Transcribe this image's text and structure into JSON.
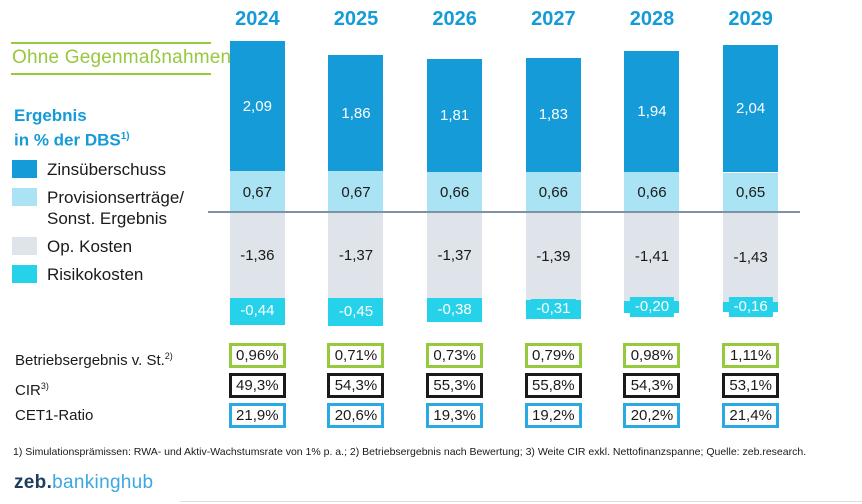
{
  "header": {
    "scenario_label": "Ohne Gegenmaßnahmen",
    "title_line1": "Ergebnis",
    "title_line2": "in % der DBS",
    "title_sup": "1)"
  },
  "colors": {
    "zinsueberschuss_blue": "#149BD8",
    "provision_lightblue": "#A9E3F4",
    "opkosten_gray": "#DEE4E9",
    "risikokosten_cyan": "#26D2E9",
    "year_label_blue": "#149BD8",
    "scenario_green": "#96C93D",
    "metric_border_green": "#96C93D",
    "metric_border_black": "#1A1A1A",
    "metric_border_blue": "#2BA9E2",
    "zero_line_gray": "#7E93A8",
    "logo_navy": "#1C3D5E",
    "logo_lightblue": "#3BA8E0"
  },
  "legend": [
    {
      "name": "zinsueberschuss",
      "color": "#149BD8",
      "lines": [
        "Zinsüberschuss"
      ]
    },
    {
      "name": "provisionsertraege",
      "color": "#A9E3F4",
      "lines": [
        "Provisionserträge/",
        "Sonst. Ergebnis"
      ]
    },
    {
      "name": "op-kosten",
      "color": "#DEE4E9",
      "lines": [
        "Op. Kosten"
      ]
    },
    {
      "name": "risikokosten",
      "color": "#26D2E9",
      "lines": [
        "Risikokosten"
      ]
    }
  ],
  "chart_data": {
    "type": "bar",
    "stacked": true,
    "title": "Ergebnis in % der DBS",
    "categories": [
      "2024",
      "2025",
      "2026",
      "2027",
      "2028",
      "2029"
    ],
    "baseline": 0,
    "legend_position": "left",
    "grid": false,
    "series": [
      {
        "name": "Zinsüberschuss",
        "color": "#149BD8",
        "text_color": "#ffffff",
        "values": [
          2.09,
          1.86,
          1.81,
          1.83,
          1.94,
          2.04
        ],
        "labels": [
          "2,09",
          "1,86",
          "1,81",
          "1,83",
          "1,94",
          "2,04"
        ]
      },
      {
        "name": "Provisionserträge/Sonst. Ergebnis",
        "color": "#A9E3F4",
        "text_color": "#1A1A1A",
        "values": [
          0.67,
          0.67,
          0.66,
          0.66,
          0.66,
          0.65
        ],
        "labels": [
          "0,67",
          "0,67",
          "0,66",
          "0,66",
          "0,66",
          "0,65"
        ]
      },
      {
        "name": "Op. Kosten",
        "color": "#DEE4E9",
        "text_color": "#1A1A1A",
        "values": [
          -1.36,
          -1.37,
          -1.37,
          -1.39,
          -1.41,
          -1.43
        ],
        "labels": [
          "-1,36",
          "-1,37",
          "-1,37",
          "-1,39",
          "-1,41",
          "-1,43"
        ]
      },
      {
        "name": "Risikokosten",
        "color": "#26D2E9",
        "text_color": "#ffffff",
        "badge": true,
        "values": [
          -0.44,
          -0.45,
          -0.38,
          -0.31,
          -0.2,
          -0.16
        ],
        "labels": [
          "-0,44",
          "-0,45",
          "-0,38",
          "-0,31",
          "-0,20",
          "-0,16"
        ]
      }
    ],
    "metric_rows": [
      {
        "name": "betriebsergebnis",
        "label": "Betriebsergebnis v. St.",
        "superscript": "2)",
        "border_color": "#96C93D",
        "values": [
          "0,96%",
          "0,71%",
          "0,73%",
          "0,79%",
          "0,98%",
          "1,11%"
        ]
      },
      {
        "name": "cir",
        "label": "CIR",
        "superscript": "3)",
        "border_color": "#1A1A1A",
        "values": [
          "49,3%",
          "54,3%",
          "55,3%",
          "55,8%",
          "54,3%",
          "53,1%"
        ]
      },
      {
        "name": "cet1-ratio",
        "label": "CET1-Ratio",
        "superscript": "",
        "border_color": "#2BA9E2",
        "values": [
          "21,9%",
          "20,6%",
          "19,3%",
          "19,2%",
          "20,2%",
          "21,4%"
        ]
      }
    ]
  },
  "footnote": "1) Simulationsprämissen: RWA- und Aktiv-Wachstumsrate von 1% p. a.; 2) Betriebsergebnis nach Bewertung; 3) Weite CIR exkl. Nettofinanzspanne; Quelle: zeb.research.",
  "logo": {
    "prefix": "zeb.",
    "suffix": "bankinghub"
  }
}
